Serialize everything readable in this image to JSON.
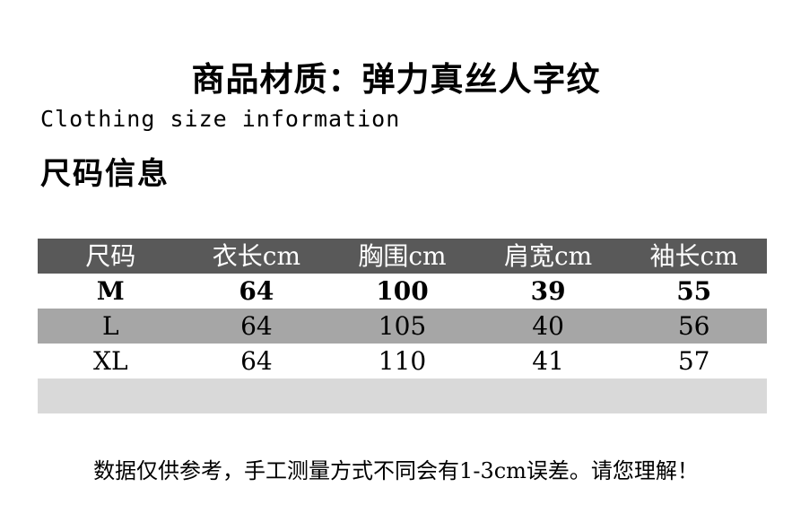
{
  "page": {
    "title": "商品材质：弹力真丝人字纹",
    "subtitle_en": "Clothing size information",
    "section_heading": "尺码信息",
    "note": "数据仅供参考，手工测量方式不同会有1-3cm误差。请您理解！"
  },
  "size_table": {
    "columns": [
      "尺码",
      "衣长cm",
      "胸围cm",
      "肩宽cm",
      "袖长cm"
    ],
    "rows": [
      {
        "size": "M",
        "values": [
          "64",
          "100",
          "39",
          "55"
        ],
        "emphasis": true
      },
      {
        "size": "L",
        "values": [
          "64",
          "105",
          "40",
          "56"
        ],
        "emphasis": false
      },
      {
        "size": "XL",
        "values": [
          "64",
          "110",
          "41",
          "57"
        ],
        "emphasis": false
      }
    ]
  },
  "colors": {
    "header_bg": "#595959",
    "header_text": "#ffffff",
    "alt_row_bg": "#a6a6a6",
    "empty_row_bg": "#d9d9d9",
    "body_text": "#000000",
    "page_bg": "#ffffff"
  }
}
